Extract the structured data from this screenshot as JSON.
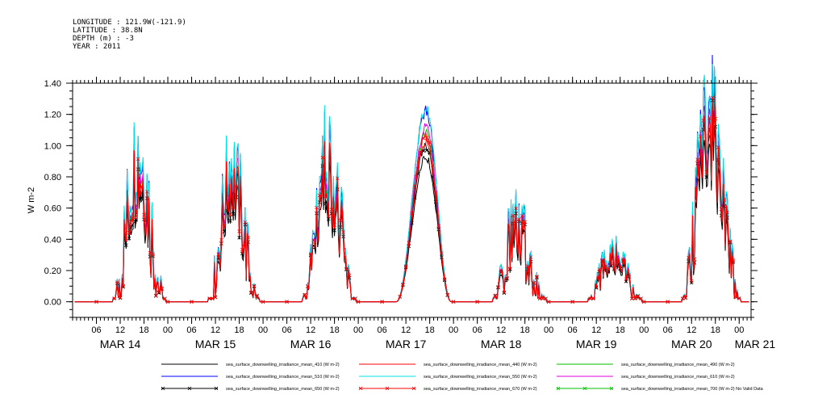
{
  "header": {
    "longitude": "LONGITUDE : 121.9W(-121.9)",
    "latitude": "LATITUDE : 38.8N",
    "depth": "DEPTH (m) : -3",
    "year": "YEAR : 2011"
  },
  "chart_data": {
    "type": "line",
    "ylabel": "W m-2",
    "ylim": [
      -0.1,
      1.4
    ],
    "yticks": [
      0.0,
      0.2,
      0.4,
      0.6,
      0.8,
      1.0,
      1.2,
      1.4
    ],
    "ytick_labels": [
      "0.00",
      "0.20",
      "0.40",
      "0.60",
      "0.80",
      "1.00",
      "1.20",
      "1.40"
    ],
    "x_unit": "hours",
    "xlim": [
      0,
      171
    ],
    "hour_ticks": [
      {
        "h": 6,
        "label": "06"
      },
      {
        "h": 12,
        "label": "12"
      },
      {
        "h": 18,
        "label": "18"
      },
      {
        "h": 24,
        "label": "00"
      },
      {
        "h": 30,
        "label": "06"
      },
      {
        "h": 36,
        "label": "12"
      },
      {
        "h": 42,
        "label": "18"
      },
      {
        "h": 48,
        "label": "00"
      },
      {
        "h": 54,
        "label": "06"
      },
      {
        "h": 60,
        "label": "12"
      },
      {
        "h": 66,
        "label": "18"
      },
      {
        "h": 72,
        "label": "00"
      },
      {
        "h": 78,
        "label": "06"
      },
      {
        "h": 84,
        "label": "12"
      },
      {
        "h": 90,
        "label": "18"
      },
      {
        "h": 96,
        "label": "00"
      },
      {
        "h": 102,
        "label": "06"
      },
      {
        "h": 108,
        "label": "12"
      },
      {
        "h": 114,
        "label": "18"
      },
      {
        "h": 120,
        "label": "00"
      },
      {
        "h": 126,
        "label": "06"
      },
      {
        "h": 132,
        "label": "12"
      },
      {
        "h": 138,
        "label": "18"
      },
      {
        "h": 144,
        "label": "00"
      },
      {
        "h": 150,
        "label": "06"
      },
      {
        "h": 156,
        "label": "12"
      },
      {
        "h": 162,
        "label": "18"
      },
      {
        "h": 168,
        "label": "00"
      }
    ],
    "day_labels": [
      {
        "h": 12,
        "label": "MAR 14"
      },
      {
        "h": 36,
        "label": "MAR 15"
      },
      {
        "h": 60,
        "label": "MAR 16"
      },
      {
        "h": 84,
        "label": "MAR 17"
      },
      {
        "h": 108,
        "label": "MAR 18"
      },
      {
        "h": 132,
        "label": "MAR 19"
      },
      {
        "h": 156,
        "label": "MAR 20"
      },
      {
        "h": 172,
        "label": "MAR 21"
      }
    ],
    "days": [
      {
        "rise": 10.0,
        "set": 23.5,
        "peak_hour": 16.5,
        "peak": 0.8,
        "jitter": 0.28
      },
      {
        "rise": 34.0,
        "set": 47.2,
        "peak_hour": 40.0,
        "peak": 0.72,
        "jitter": 0.22
      },
      {
        "rise": 57.8,
        "set": 71.5,
        "peak_hour": 64.0,
        "peak": 0.78,
        "jitter": 0.25
      },
      {
        "rise": 81.5,
        "set": 95.5,
        "peak_hour": 89.0,
        "peak": 1.0,
        "jitter": 0.0
      },
      {
        "rise": 105.8,
        "set": 119.5,
        "peak_hour": 111.5,
        "peak": 0.42,
        "jitter": 0.18
      },
      {
        "rise": 129.8,
        "set": 143.5,
        "peak_hour": 136.0,
        "peak": 0.28,
        "jitter": 0.1
      },
      {
        "rise": 153.5,
        "set": 168.5,
        "peak_hour": 160.5,
        "peak": 1.05,
        "jitter": 0.3
      }
    ],
    "series": [
      {
        "name": "sea_surface_downwelling_irradiance_mean_410 (W m-2)",
        "color": "#000000",
        "scale": 0.93,
        "marker": false
      },
      {
        "name": "sea_surface_downwelling_irradiance_mean_440 (W m-2)",
        "color": "#ff0000",
        "scale": 1.03,
        "marker": false
      },
      {
        "name": "sea_surface_downwelling_irradiance_mean_490 (W m-2)",
        "color": "#00c000",
        "scale": 1.08,
        "marker": false
      },
      {
        "name": "sea_surface_downwelling_irradiance_mean_510 (W m-2)",
        "color": "#0000ff",
        "scale": 1.22,
        "marker": false
      },
      {
        "name": "sea_surface_downwelling_irradiance_mean_550 (W m-2)",
        "color": "#00e0e0",
        "scale": 1.24,
        "marker": false
      },
      {
        "name": "sea_surface_downwelling_irradiance_mean_610 (W m-2)",
        "color": "#e000e0",
        "scale": 1.12,
        "marker": false
      },
      {
        "name": "sea_surface_downwelling_irradiance_mean_650 (W m-2)",
        "color": "#000000",
        "scale": 1.0,
        "marker": true
      },
      {
        "name": "sea_surface_downwelling_irradiance_mean_670 (W m-2)",
        "color": "#ff0000",
        "scale": 1.06,
        "marker": true
      },
      {
        "name": "sea_surface_downwelling_irradiance_mean_700 (W m-2) No Valid Data",
        "color": "#00c000",
        "scale": 0,
        "marker": true
      }
    ]
  }
}
